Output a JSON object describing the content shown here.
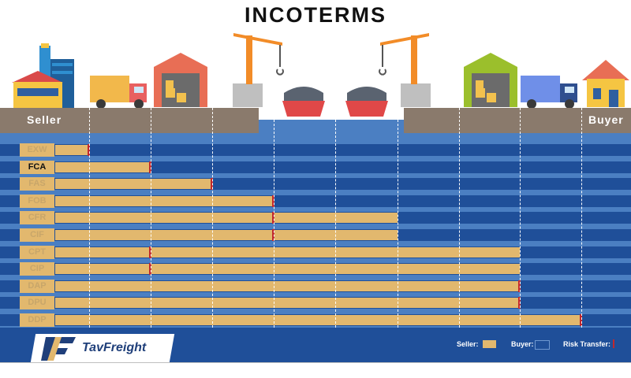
{
  "title": "INCOTERMS",
  "seller_label": "Seller",
  "buyer_label": "Buyer",
  "brand": "TavFreight",
  "brand_parts": [
    "Tav",
    "Freight"
  ],
  "legend": {
    "seller": "Seller:",
    "buyer": "Buyer:",
    "risk": "Risk Transfer:"
  },
  "colors": {
    "seller": "#e2b86e",
    "buyer": "#1f4f99",
    "risk": "#c0282d",
    "ground": "#8a7a6c",
    "water": "#4b7fc2"
  },
  "stages": [
    "factory",
    "truck",
    "warehouse",
    "port-crane",
    "ship",
    "ship",
    "port-crane",
    "warehouse",
    "truck",
    "house"
  ],
  "terms": [
    {
      "code": "EXW",
      "seller_until": 1,
      "risk_at": 1
    },
    {
      "code": "FCA",
      "seller_until": 2,
      "risk_at": 2
    },
    {
      "code": "FAS",
      "seller_until": 3,
      "risk_at": 3
    },
    {
      "code": "FOB",
      "seller_until": 4,
      "risk_at": 4
    },
    {
      "code": "CFR",
      "seller_until": 6,
      "risk_at": 4
    },
    {
      "code": "CIF",
      "seller_until": 6,
      "risk_at": 4
    },
    {
      "code": "CPT",
      "seller_until": 8,
      "risk_at": 2
    },
    {
      "code": "CIP",
      "seller_until": 8,
      "risk_at": 2
    },
    {
      "code": "DAP",
      "seller_until": 8,
      "risk_at": 8
    },
    {
      "code": "DPU",
      "seller_until": 8,
      "risk_at": 8
    },
    {
      "code": "DDP",
      "seller_until": 9,
      "risk_at": 9
    }
  ],
  "highlighted_term": "FCA"
}
